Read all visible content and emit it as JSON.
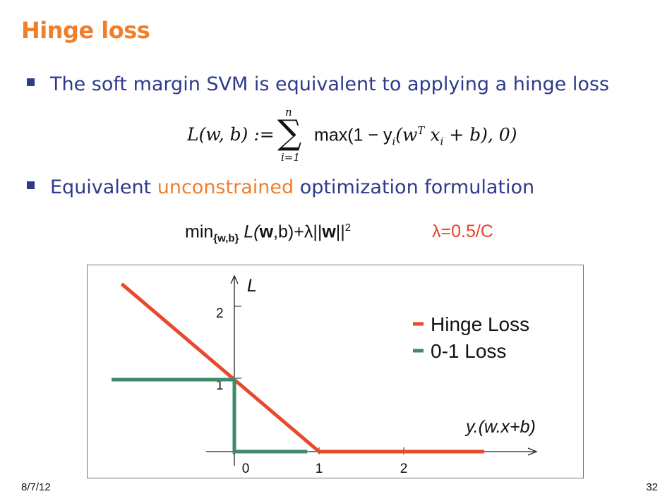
{
  "slide": {
    "title": "Hinge loss",
    "bullet1": "The soft margin SVM is equivalent to applying a hinge loss",
    "equation1": {
      "lhs": "L(w, b) :=",
      "sum_upper": "n",
      "sum_lower": "i=1",
      "rhs_prefix": "max(1 − y",
      "rhs_i1": "i",
      "rhs_paren": "(w",
      "rhs_T": "T",
      "rhs_x": " x",
      "rhs_i2": "i",
      "rhs_suffix": " + b), 0)"
    },
    "bullet2": {
      "part1": "Equivalent ",
      "part2_orange": "unconstrained",
      "part3": " optimization formulation"
    },
    "equation2": {
      "min": "min",
      "min_sub": "{w,b}",
      "body_L": " L(",
      "body_w1": "w",
      "body_mid": ",b)+λ||",
      "body_w2": "w",
      "body_end": "||",
      "sq": "2"
    },
    "lambda_note": "λ=0.5/C",
    "footer_date": "8/7/12",
    "page_number": "32"
  },
  "colors": {
    "title": "#f07f2c",
    "bullet_text": "#2e3a8c",
    "hinge": "#e8492e",
    "zero_one": "#3f8a6a"
  },
  "chart_data": {
    "type": "line",
    "xlabel": "y.(w.x+b)",
    "ylabel": "L",
    "xticks": [
      "0",
      "1",
      "2"
    ],
    "yticks": [
      "1",
      "2"
    ],
    "xlim": [
      -1.5,
      3.5
    ],
    "ylim": [
      -0.05,
      2.35
    ],
    "series": [
      {
        "name": "Hinge Loss",
        "points": [
          [
            -1.33,
            2.33
          ],
          [
            1,
            0
          ],
          [
            2.95,
            0
          ]
        ]
      },
      {
        "name": "0-1 Loss",
        "points": [
          [
            -1.45,
            1
          ],
          [
            0,
            1
          ],
          [
            0,
            0
          ],
          [
            0.86,
            0
          ]
        ]
      }
    ]
  }
}
